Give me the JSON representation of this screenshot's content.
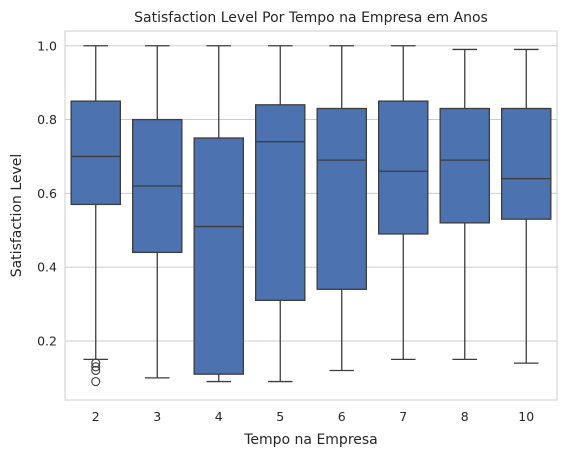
{
  "chart_data": {
    "type": "box",
    "title": "Satisfaction Level Por Tempo na Empresa em Anos",
    "xlabel": "Tempo na Empresa",
    "ylabel": "Satisfaction Level",
    "ylim": [
      0.04,
      1.04
    ],
    "yticks": [
      "0.2",
      "0.4",
      "0.6",
      "0.8",
      "1.0"
    ],
    "grid": true,
    "box_color": "#4c72b0",
    "line_color": "#3d3d3d",
    "grid_color": "#cccccc",
    "categories": [
      "2",
      "3",
      "4",
      "5",
      "6",
      "7",
      "8",
      "10"
    ],
    "boxes": [
      {
        "category": "2",
        "whisker_low": 0.15,
        "q1": 0.57,
        "median": 0.7,
        "q3": 0.85,
        "whisker_high": 1.0,
        "outliers": [
          0.14,
          0.13,
          0.12,
          0.09
        ]
      },
      {
        "category": "3",
        "whisker_low": 0.1,
        "q1": 0.44,
        "median": 0.62,
        "q3": 0.8,
        "whisker_high": 1.0,
        "outliers": []
      },
      {
        "category": "4",
        "whisker_low": 0.09,
        "q1": 0.11,
        "median": 0.51,
        "q3": 0.75,
        "whisker_high": 1.0,
        "outliers": []
      },
      {
        "category": "5",
        "whisker_low": 0.09,
        "q1": 0.31,
        "median": 0.74,
        "q3": 0.84,
        "whisker_high": 1.0,
        "outliers": []
      },
      {
        "category": "6",
        "whisker_low": 0.12,
        "q1": 0.34,
        "median": 0.69,
        "q3": 0.83,
        "whisker_high": 1.0,
        "outliers": []
      },
      {
        "category": "7",
        "whisker_low": 0.15,
        "q1": 0.49,
        "median": 0.66,
        "q3": 0.85,
        "whisker_high": 1.0,
        "outliers": []
      },
      {
        "category": "8",
        "whisker_low": 0.15,
        "q1": 0.52,
        "median": 0.69,
        "q3": 0.83,
        "whisker_high": 0.99,
        "outliers": []
      },
      {
        "category": "10",
        "whisker_low": 0.14,
        "q1": 0.53,
        "median": 0.64,
        "q3": 0.83,
        "whisker_high": 0.99,
        "outliers": []
      }
    ]
  }
}
